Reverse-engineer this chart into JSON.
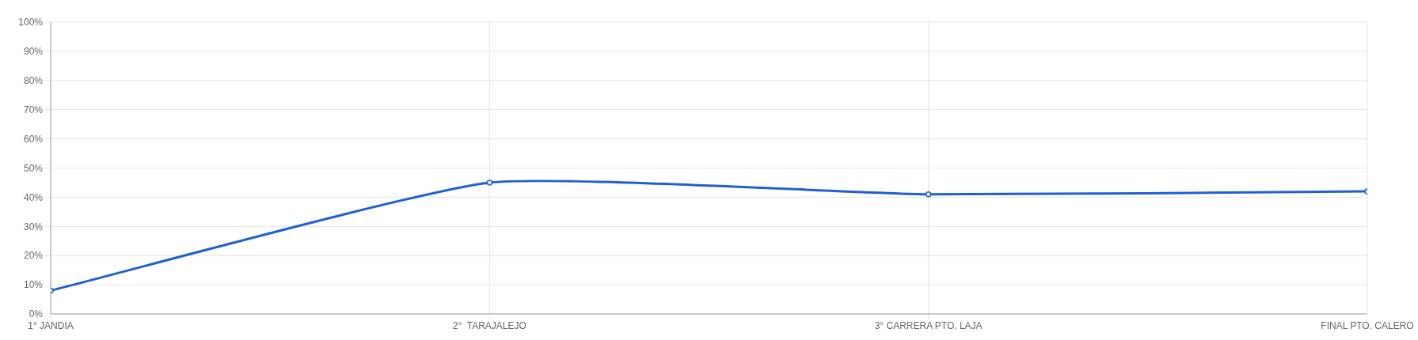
{
  "chart_data": {
    "type": "line",
    "categories": [
      "1° JANDIA",
      "2°  TARAJALEJO",
      "3° CARRERA PTO. LAJA",
      "FINAL PTO. CALERO"
    ],
    "values": [
      8,
      45,
      41,
      42
    ],
    "color": "#1f5fd6",
    "ylim": [
      0,
      100
    ],
    "yticks": [
      {
        "value": 0,
        "label": "0%"
      },
      {
        "value": 10,
        "label": "10%"
      },
      {
        "value": 20,
        "label": "20%"
      },
      {
        "value": 30,
        "label": "30%"
      },
      {
        "value": 40,
        "label": "40%"
      },
      {
        "value": 50,
        "label": "50%"
      },
      {
        "value": 60,
        "label": "60%"
      },
      {
        "value": 70,
        "label": "70%"
      },
      {
        "value": 80,
        "label": "80%"
      },
      {
        "value": 90,
        "label": "90%"
      },
      {
        "value": 100,
        "label": "100%"
      }
    ],
    "grid": true,
    "marker": "circle",
    "line_style": "solid"
  }
}
